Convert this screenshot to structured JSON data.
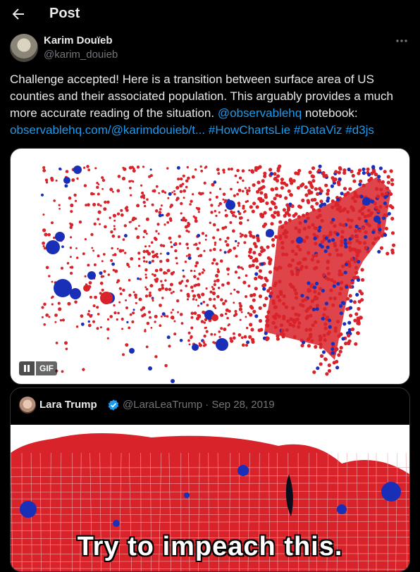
{
  "header": {
    "title": "Post"
  },
  "post": {
    "author_name": "Karim Douïeb",
    "author_handle": "@karim_douieb",
    "text_intro": "Challenge accepted! Here is a transition between surface area of US counties and their associated population. This arguably provides a much more accurate reading of the situation.",
    "mention": "@observablehq",
    "text_mid": "notebook:",
    "url": "observablehq.com/@karimdouieb/t...",
    "hashtags": [
      "#HowChartsLie",
      "#DataViz",
      "#d3js"
    ],
    "media": {
      "badge": "GIF",
      "colors": {
        "red": "#d8232a",
        "blue": "#1a2fb8"
      }
    }
  },
  "quoted": {
    "author_name": "Lara Trump",
    "author_handle": "@LaraLeaTrump · Sep 28, 2019",
    "caption": "Try to impeach this."
  }
}
